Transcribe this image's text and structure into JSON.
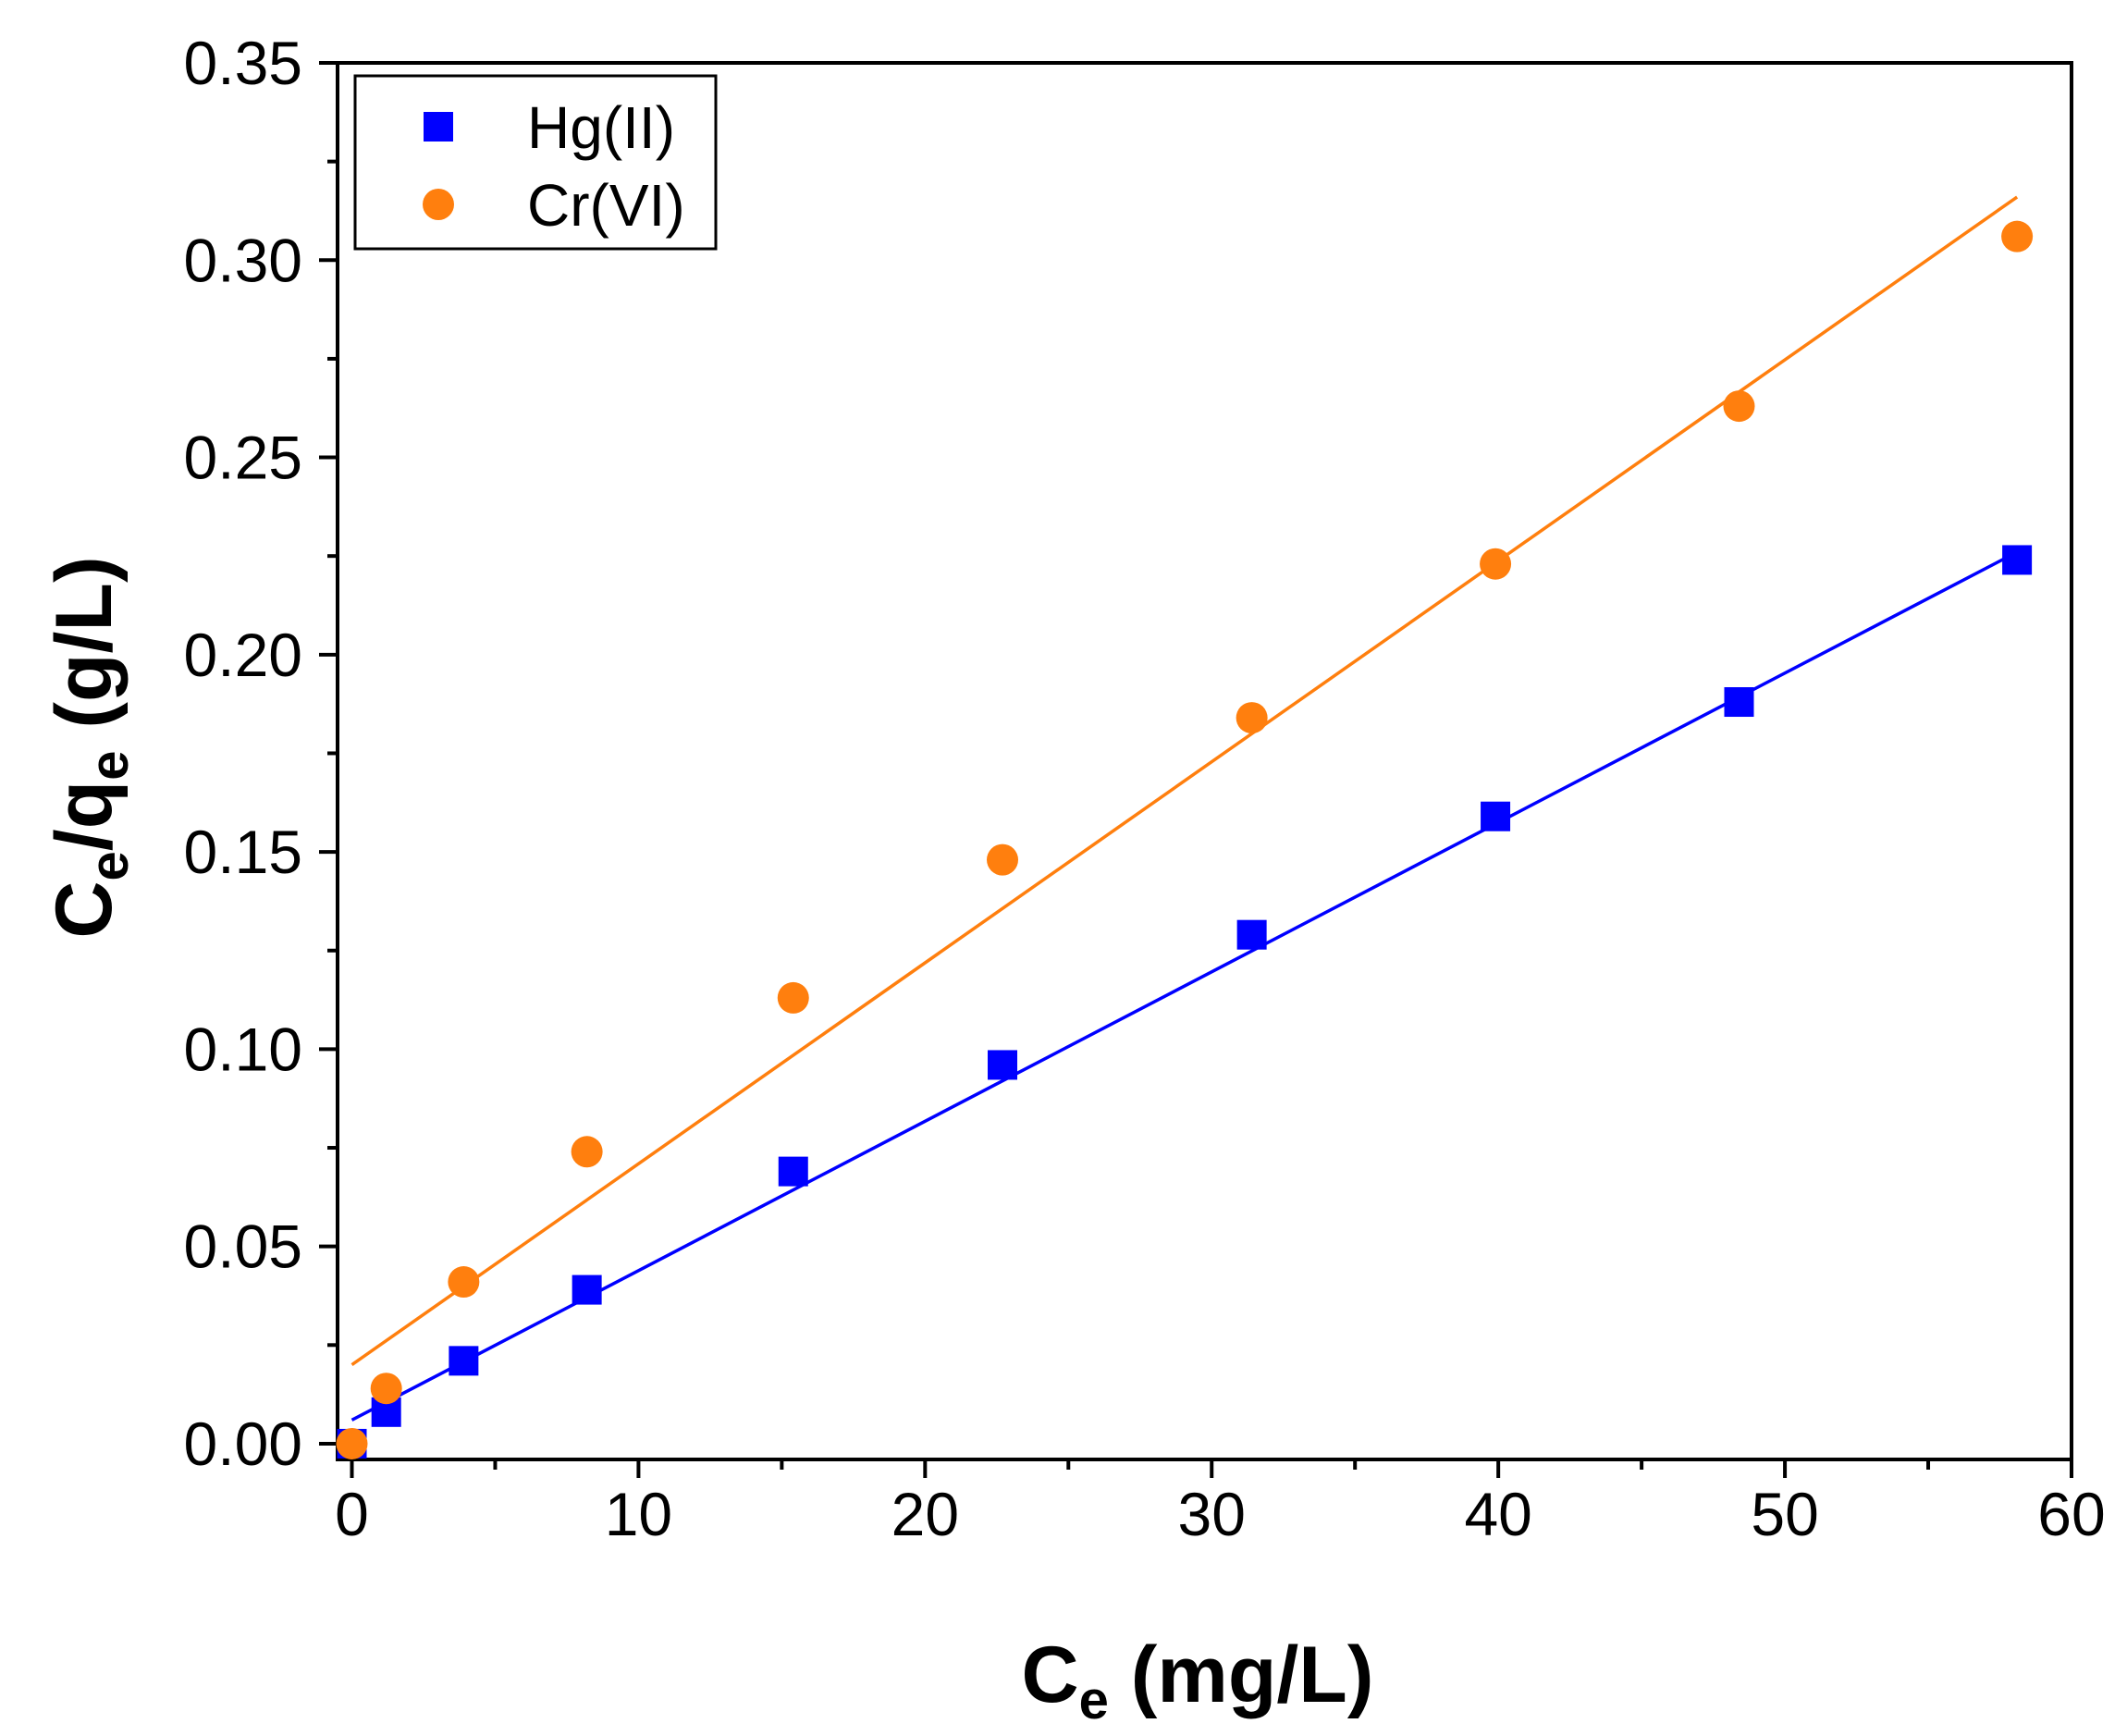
{
  "chart_data": {
    "type": "scatter",
    "xlabel": {
      "main": "C",
      "sub": "e",
      "rest": " (mg/L)"
    },
    "ylabel": {
      "c": "C",
      "sub1": "e",
      "slash": "/q",
      "sub2": "e",
      "rest": " (g/L)"
    },
    "xlim": [
      -0.5,
      60
    ],
    "ylim": [
      -0.004,
      0.35
    ],
    "x_ticks": [
      0,
      10,
      20,
      30,
      40,
      50,
      60
    ],
    "x_tick_labels": [
      "0",
      "10",
      "20",
      "30",
      "40",
      "50",
      "60"
    ],
    "y_ticks": [
      0.0,
      0.05,
      0.1,
      0.15,
      0.2,
      0.25,
      0.3,
      0.35
    ],
    "y_tick_labels": [
      "0.00",
      "0.05",
      "0.10",
      "0.15",
      "0.20",
      "0.25",
      "0.30",
      "0.35"
    ],
    "grid": false,
    "legend_position": "top-left",
    "series": [
      {
        "name": "Hg(II)",
        "marker": "square",
        "color": "#0000FF",
        "x": [
          0,
          1.2,
          3.9,
          8.2,
          15.4,
          22.7,
          31.4,
          39.9,
          48.4,
          58.1
        ],
        "y": [
          0.0,
          0.008,
          0.021,
          0.039,
          0.069,
          0.096,
          0.129,
          0.159,
          0.188,
          0.224
        ],
        "fit": {
          "x": [
            0,
            58.1
          ],
          "y": [
            0.006,
            0.226
          ]
        }
      },
      {
        "name": "Cr(VI)",
        "marker": "circle",
        "color": "#FF7F0E",
        "x": [
          0,
          1.2,
          3.9,
          8.2,
          15.4,
          22.7,
          31.4,
          39.9,
          48.4,
          58.1
        ],
        "y": [
          0.0,
          0.014,
          0.041,
          0.074,
          0.113,
          0.148,
          0.184,
          0.223,
          0.263,
          0.306
        ],
        "fit": {
          "x": [
            0,
            58.1
          ],
          "y": [
            0.02,
            0.316
          ]
        }
      }
    ]
  }
}
